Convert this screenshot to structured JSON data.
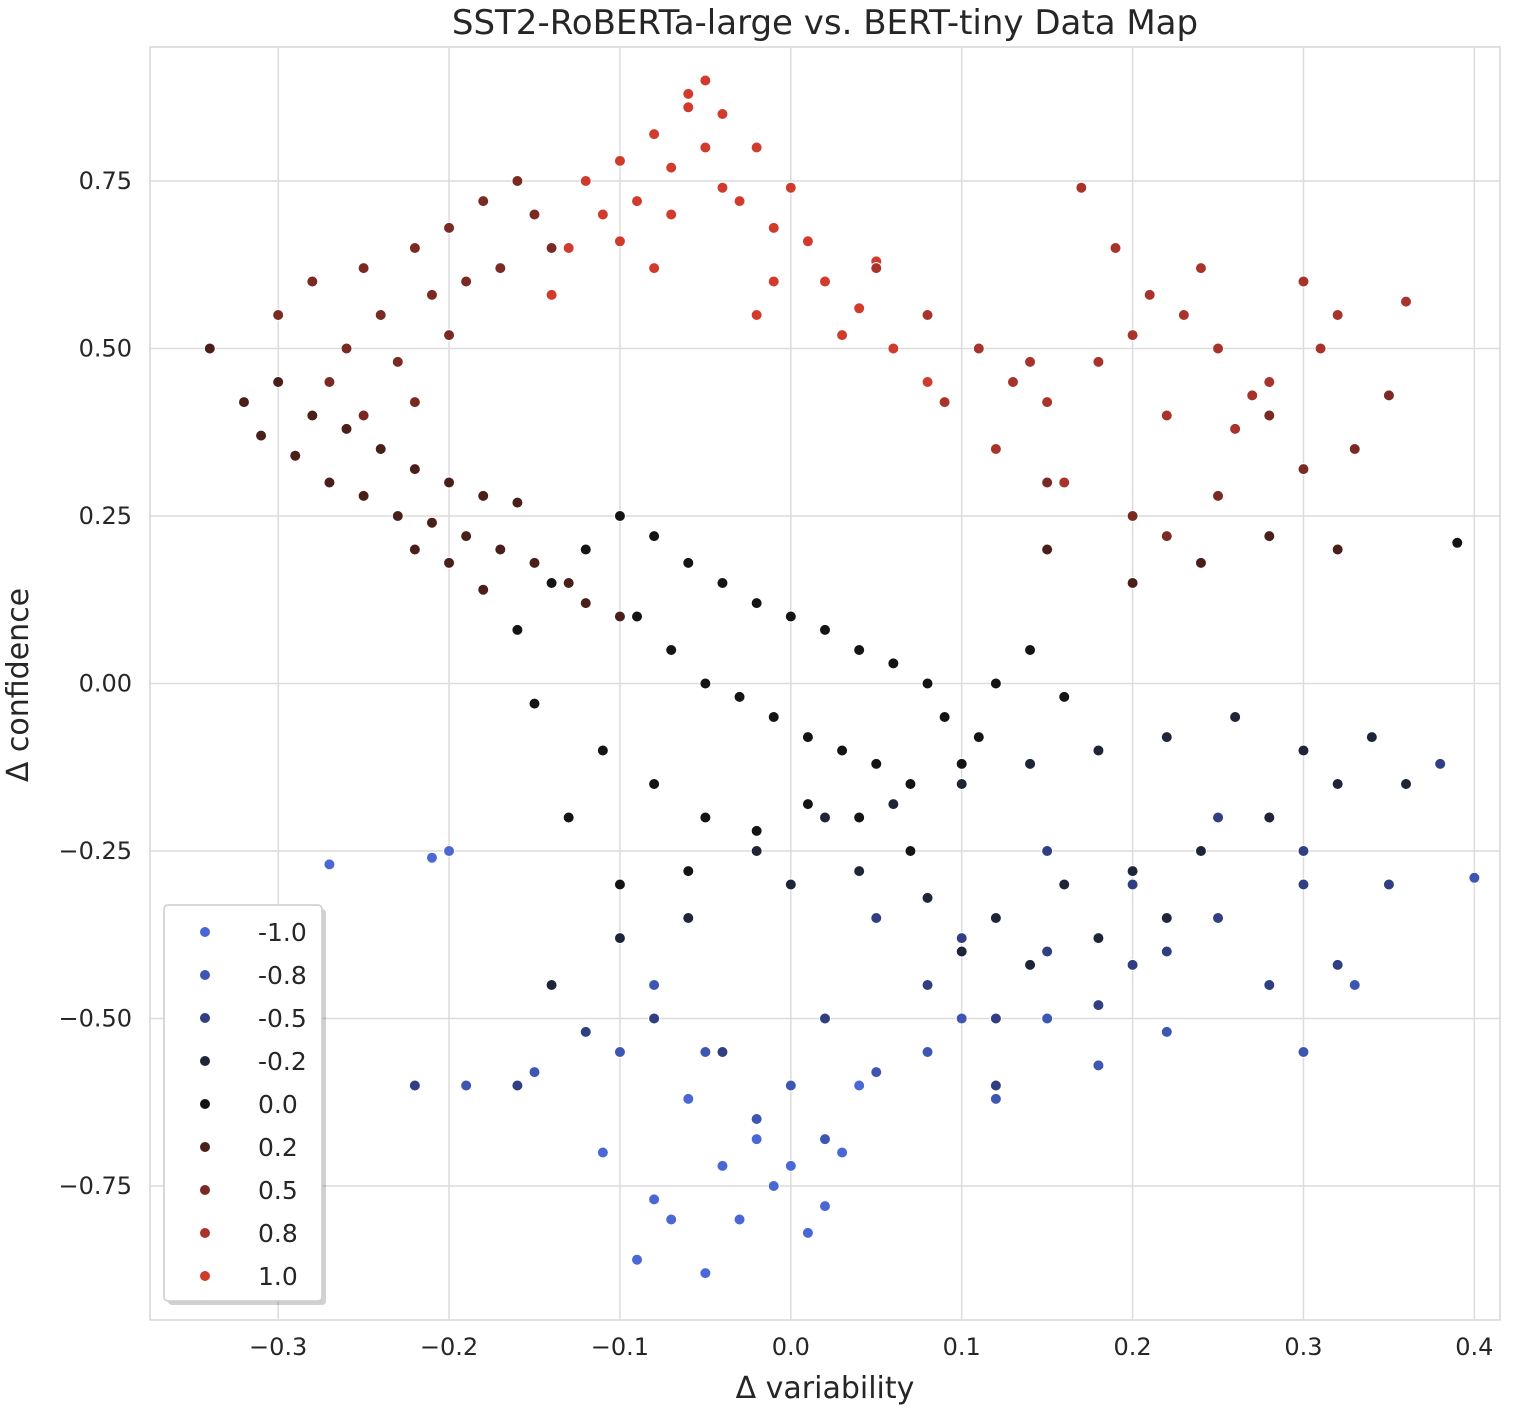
{
  "chart_data": {
    "type": "scatter",
    "title": "SST2-RoBERTa-large vs. BERT-tiny Data Map",
    "xlabel": "Δ variability",
    "ylabel": "Δ confidence",
    "xlim": [
      -0.375,
      0.415
    ],
    "ylim": [
      -0.95,
      0.95
    ],
    "x_ticks": [
      -0.3,
      -0.2,
      -0.1,
      0.0,
      0.1,
      0.2,
      0.3,
      0.4
    ],
    "x_tick_labels": [
      "−0.3",
      "−0.2",
      "−0.1",
      "0.0",
      "0.1",
      "0.2",
      "0.3",
      "0.4"
    ],
    "y_ticks": [
      0.75,
      0.5,
      0.25,
      0.0,
      -0.25,
      -0.5,
      -0.75
    ],
    "y_tick_labels": [
      "0.75",
      "0.50",
      "0.25",
      "0.00",
      "−0.25",
      "−0.50",
      "−0.75"
    ],
    "grid": true,
    "legend_position": "lower-left",
    "hue_levels": [
      {
        "label": "-1.0",
        "value": -1.0,
        "color": "#4a67d6"
      },
      {
        "label": "-0.8",
        "value": -0.8,
        "color": "#3d56b2"
      },
      {
        "label": "-0.5",
        "value": -0.5,
        "color": "#2f3f82"
      },
      {
        "label": "-0.2",
        "value": -0.2,
        "color": "#1f2538"
      },
      {
        "label": "0.0",
        "value": 0.0,
        "color": "#141414"
      },
      {
        "label": "0.2",
        "value": 0.2,
        "color": "#4a1f1a"
      },
      {
        "label": "0.5",
        "value": 0.5,
        "color": "#7a2a22"
      },
      {
        "label": "0.8",
        "value": 0.8,
        "color": "#a8332a"
      },
      {
        "label": "1.0",
        "value": 1.0,
        "color": "#d13b2e"
      }
    ],
    "point_groups": [
      {
        "hue": 1.0,
        "x": [
          -0.12,
          -0.1,
          -0.08,
          -0.06,
          -0.04,
          -0.02,
          0.0,
          -0.11,
          -0.09,
          -0.07,
          -0.05,
          -0.03,
          -0.01,
          0.01,
          -0.13,
          -0.1,
          -0.07,
          -0.04,
          -0.01,
          0.02,
          0.04,
          -0.06,
          -0.05,
          -0.08,
          0.03,
          0.06,
          0.08,
          -0.14,
          -0.02,
          0.05
        ],
        "y": [
          0.75,
          0.78,
          0.82,
          0.86,
          0.85,
          0.8,
          0.74,
          0.7,
          0.72,
          0.77,
          0.8,
          0.72,
          0.68,
          0.66,
          0.65,
          0.66,
          0.7,
          0.74,
          0.6,
          0.6,
          0.56,
          0.88,
          0.9,
          0.62,
          0.52,
          0.5,
          0.45,
          0.58,
          0.55,
          0.63
        ]
      },
      {
        "hue": 0.8,
        "x": [
          0.05,
          0.08,
          0.11,
          0.13,
          0.15,
          0.18,
          0.2,
          0.23,
          0.25,
          0.28,
          0.3,
          0.12,
          0.16,
          0.22,
          0.26,
          0.32,
          0.36,
          0.09,
          0.14,
          0.19,
          0.24,
          0.27,
          0.31,
          0.17,
          0.21
        ],
        "y": [
          0.62,
          0.55,
          0.5,
          0.45,
          0.42,
          0.48,
          0.52,
          0.55,
          0.5,
          0.45,
          0.6,
          0.35,
          0.3,
          0.4,
          0.38,
          0.55,
          0.57,
          0.42,
          0.48,
          0.65,
          0.62,
          0.43,
          0.5,
          0.74,
          0.58
        ]
      },
      {
        "hue": 0.5,
        "x": [
          -0.25,
          -0.22,
          -0.2,
          -0.18,
          -0.16,
          -0.24,
          -0.26,
          -0.21,
          -0.19,
          -0.17,
          -0.28,
          -0.3,
          -0.23,
          -0.15,
          -0.14,
          -0.27,
          -0.25,
          -0.22,
          -0.2,
          0.15,
          0.2,
          0.25,
          0.3,
          0.35,
          0.22,
          0.28,
          0.33
        ],
        "y": [
          0.62,
          0.65,
          0.68,
          0.72,
          0.75,
          0.55,
          0.5,
          0.58,
          0.6,
          0.62,
          0.6,
          0.55,
          0.48,
          0.7,
          0.65,
          0.45,
          0.4,
          0.42,
          0.52,
          0.3,
          0.25,
          0.28,
          0.32,
          0.43,
          0.22,
          0.4,
          0.35
        ]
      },
      {
        "hue": 0.2,
        "x": [
          -0.32,
          -0.3,
          -0.28,
          -0.26,
          -0.24,
          -0.22,
          -0.2,
          -0.18,
          -0.16,
          -0.29,
          -0.27,
          -0.25,
          -0.23,
          -0.21,
          -0.19,
          -0.17,
          -0.15,
          -0.13,
          -0.34,
          -0.31,
          -0.12,
          -0.1,
          -0.2,
          -0.18,
          -0.22,
          0.15,
          0.2,
          0.24,
          0.28,
          0.32
        ],
        "y": [
          0.42,
          0.45,
          0.4,
          0.38,
          0.35,
          0.32,
          0.3,
          0.28,
          0.27,
          0.34,
          0.3,
          0.28,
          0.25,
          0.24,
          0.22,
          0.2,
          0.18,
          0.15,
          0.5,
          0.37,
          0.12,
          0.1,
          0.18,
          0.14,
          0.2,
          0.2,
          0.15,
          0.18,
          0.22,
          0.2
        ]
      },
      {
        "hue": 0.0,
        "x": [
          -0.12,
          -0.1,
          -0.08,
          -0.06,
          -0.04,
          -0.02,
          0.0,
          0.02,
          0.04,
          0.06,
          0.08,
          -0.09,
          -0.07,
          -0.05,
          -0.03,
          -0.01,
          0.01,
          0.03,
          0.05,
          0.07,
          0.09,
          0.11,
          -0.11,
          -0.08,
          -0.05,
          -0.02,
          0.01,
          0.04,
          0.07,
          0.1,
          -0.14,
          -0.13,
          -0.1,
          -0.06,
          0.12,
          0.14,
          0.16,
          0.39,
          -0.16,
          -0.15
        ],
        "y": [
          0.2,
          0.25,
          0.22,
          0.18,
          0.15,
          0.12,
          0.1,
          0.08,
          0.05,
          0.03,
          0.0,
          0.1,
          0.05,
          0.0,
          -0.02,
          -0.05,
          -0.08,
          -0.1,
          -0.12,
          -0.15,
          -0.05,
          -0.08,
          -0.1,
          -0.15,
          -0.2,
          -0.22,
          -0.18,
          -0.2,
          -0.25,
          -0.12,
          0.15,
          -0.2,
          -0.3,
          -0.28,
          0.0,
          0.05,
          -0.02,
          0.21,
          0.08,
          -0.03
        ]
      },
      {
        "hue": -0.2,
        "x": [
          -0.02,
          0.02,
          0.06,
          0.1,
          0.14,
          0.18,
          0.22,
          0.26,
          0.3,
          0.0,
          0.04,
          0.08,
          0.12,
          0.16,
          0.2,
          0.24,
          0.28,
          0.32,
          -0.06,
          -0.1,
          -0.14,
          0.38,
          0.34,
          0.36,
          0.1,
          0.14,
          0.18,
          0.22
        ],
        "y": [
          -0.25,
          -0.2,
          -0.18,
          -0.15,
          -0.12,
          -0.1,
          -0.08,
          -0.05,
          -0.1,
          -0.3,
          -0.28,
          -0.32,
          -0.35,
          -0.3,
          -0.28,
          -0.25,
          -0.2,
          -0.15,
          -0.35,
          -0.38,
          -0.45,
          -0.12,
          -0.08,
          -0.15,
          -0.4,
          -0.42,
          -0.38,
          -0.35
        ]
      },
      {
        "hue": -0.5,
        "x": [
          0.05,
          0.1,
          0.15,
          0.2,
          0.25,
          0.3,
          0.08,
          0.12,
          0.18,
          0.22,
          0.28,
          0.32,
          0.35,
          0.38,
          0.02,
          -0.04,
          -0.08,
          -0.12,
          -0.16,
          -0.22,
          0.2,
          0.25,
          0.3,
          0.15,
          0.08,
          0.12
        ],
        "y": [
          -0.35,
          -0.38,
          -0.4,
          -0.42,
          -0.35,
          -0.3,
          -0.45,
          -0.5,
          -0.48,
          -0.4,
          -0.45,
          -0.42,
          -0.3,
          -0.12,
          -0.5,
          -0.55,
          -0.5,
          -0.52,
          -0.6,
          -0.6,
          -0.3,
          -0.2,
          -0.25,
          -0.25,
          -0.55,
          -0.6
        ]
      },
      {
        "hue": -0.8,
        "x": [
          -0.05,
          0.0,
          0.05,
          -0.02,
          0.02,
          0.08,
          0.12,
          0.18,
          -0.1,
          -0.15,
          -0.19,
          -0.08,
          0.3,
          0.33,
          0.4,
          0.22,
          0.15,
          0.1
        ],
        "y": [
          -0.55,
          -0.6,
          -0.58,
          -0.65,
          -0.68,
          -0.55,
          -0.62,
          -0.57,
          -0.55,
          -0.58,
          -0.6,
          -0.45,
          -0.55,
          -0.45,
          -0.29,
          -0.52,
          -0.5,
          -0.5
        ]
      },
      {
        "hue": -1.0,
        "x": [
          -0.09,
          -0.05,
          -0.03,
          -0.01,
          0.01,
          0.03,
          -0.04,
          -0.07,
          -0.02,
          0.0,
          0.04,
          -0.06,
          -0.08,
          0.02,
          -0.11,
          -0.2,
          -0.21,
          -0.27
        ],
        "y": [
          -0.86,
          -0.88,
          -0.8,
          -0.75,
          -0.82,
          -0.7,
          -0.72,
          -0.8,
          -0.68,
          -0.72,
          -0.6,
          -0.62,
          -0.77,
          -0.78,
          -0.7,
          -0.25,
          -0.26,
          -0.27
        ]
      }
    ]
  }
}
